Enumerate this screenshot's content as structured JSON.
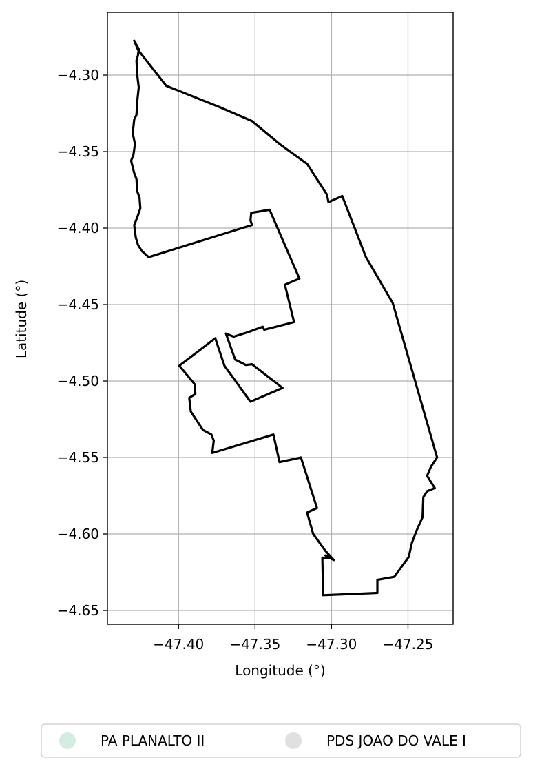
{
  "chart_data": {
    "type": "map",
    "xlabel": "Longitude (°)",
    "ylabel": "Latitude (°)",
    "xlim": [
      -47.4465,
      -47.2205
    ],
    "ylim": [
      -4.659,
      -4.259
    ],
    "grid": true,
    "x_ticks": [
      -47.4,
      -47.35,
      -47.3,
      -47.25
    ],
    "x_tick_labels": [
      "−47.40",
      "−47.35",
      "−47.30",
      "−47.25"
    ],
    "y_ticks": [
      -4.3,
      -4.35,
      -4.4,
      -4.45,
      -4.5,
      -4.55,
      -4.6,
      -4.65
    ],
    "y_tick_labels": [
      "−4.30",
      "−4.35",
      "−4.40",
      "−4.45",
      "−4.50",
      "−4.55",
      "−4.60",
      "−4.65"
    ],
    "legend_position": "bottom-center",
    "legend": [
      {
        "name": "PA PLANALTO II",
        "color": "#d3ede2"
      },
      {
        "name": "PDS JOAO DO VALE I",
        "color": "#e0e0e0"
      }
    ],
    "outline_color": "#000000",
    "polygons": [
      {
        "name": "PA PLANALTO II",
        "coords": [
          [
            -47.429,
            -4.2775
          ],
          [
            -47.426,
            -4.283
          ],
          [
            -47.4265,
            -4.287
          ],
          [
            -47.4275,
            -4.2905
          ],
          [
            -47.427,
            -4.3
          ],
          [
            -47.426,
            -4.308
          ],
          [
            -47.427,
            -4.317
          ],
          [
            -47.4275,
            -4.326
          ],
          [
            -47.429,
            -4.329
          ],
          [
            -47.43,
            -4.338
          ],
          [
            -47.4285,
            -4.345
          ],
          [
            -47.4295,
            -4.352
          ],
          [
            -47.431,
            -4.356
          ],
          [
            -47.429,
            -4.364
          ],
          [
            -47.4275,
            -4.368
          ],
          [
            -47.427,
            -4.376
          ],
          [
            -47.4255,
            -4.38
          ],
          [
            -47.425,
            -4.387
          ],
          [
            -47.427,
            -4.393
          ],
          [
            -47.429,
            -4.398
          ],
          [
            -47.428,
            -4.406
          ],
          [
            -47.4265,
            -4.411
          ],
          [
            -47.424,
            -4.415
          ],
          [
            -47.4195,
            -4.419
          ],
          [
            -47.365,
            -4.402
          ],
          [
            -47.352,
            -4.398
          ],
          [
            -47.353,
            -4.395
          ],
          [
            -47.3525,
            -4.39
          ],
          [
            -47.3405,
            -4.388
          ],
          [
            -47.321,
            -4.433
          ],
          [
            -47.3305,
            -4.437
          ],
          [
            -47.3245,
            -4.4615
          ],
          [
            -47.344,
            -4.4665
          ],
          [
            -47.345,
            -4.4645
          ],
          [
            -47.3545,
            -4.468
          ],
          [
            -47.364,
            -4.471
          ],
          [
            -47.369,
            -4.469
          ],
          [
            -47.363,
            -4.486
          ],
          [
            -47.356,
            -4.4895
          ],
          [
            -47.352,
            -4.489
          ],
          [
            -47.332,
            -4.5045
          ],
          [
            -47.353,
            -4.5135
          ],
          [
            -47.37,
            -4.49
          ],
          [
            -47.376,
            -4.472
          ],
          [
            -47.3995,
            -4.49
          ],
          [
            -47.3895,
            -4.502
          ],
          [
            -47.389,
            -4.5085
          ],
          [
            -47.393,
            -4.511
          ],
          [
            -47.392,
            -4.52
          ],
          [
            -47.388,
            -4.526
          ],
          [
            -47.384,
            -4.532
          ],
          [
            -47.3785,
            -4.535
          ],
          [
            -47.377,
            -4.539
          ],
          [
            -47.378,
            -4.547
          ],
          [
            -47.338,
            -4.535
          ],
          [
            -47.334,
            -4.553
          ],
          [
            -47.32,
            -4.55
          ],
          [
            -47.3095,
            -4.583
          ],
          [
            -47.316,
            -4.586
          ],
          [
            -47.312,
            -4.6
          ],
          [
            -47.304,
            -4.611
          ],
          [
            -47.2985,
            -4.617
          ],
          [
            -47.304,
            -4.614
          ],
          [
            -47.3,
            -4.616
          ],
          [
            -47.306,
            -4.6155
          ],
          [
            -47.3055,
            -4.64
          ],
          [
            -47.27,
            -4.6385
          ],
          [
            -47.27,
            -4.63
          ],
          [
            -47.259,
            -4.628
          ],
          [
            -47.2495,
            -4.615
          ],
          [
            -47.2475,
            -4.606
          ],
          [
            -47.2445,
            -4.598
          ],
          [
            -47.2405,
            -4.589
          ],
          [
            -47.24,
            -4.576
          ],
          [
            -47.2375,
            -4.572
          ],
          [
            -47.2325,
            -4.57
          ],
          [
            -47.2375,
            -4.562
          ],
          [
            -47.235,
            -4.556
          ],
          [
            -47.231,
            -4.55
          ],
          [
            -47.26,
            -4.449
          ],
          [
            -47.2775,
            -4.419
          ],
          [
            -47.293,
            -4.379
          ],
          [
            -47.302,
            -4.383
          ],
          [
            -47.303,
            -4.378
          ],
          [
            -47.316,
            -4.358
          ],
          [
            -47.334,
            -4.345
          ],
          [
            -47.352,
            -4.33
          ],
          [
            -47.373,
            -4.321
          ],
          [
            -47.408,
            -4.307
          ],
          [
            -47.4265,
            -4.2835
          ],
          [
            -47.429,
            -4.2775
          ]
        ]
      }
    ]
  }
}
